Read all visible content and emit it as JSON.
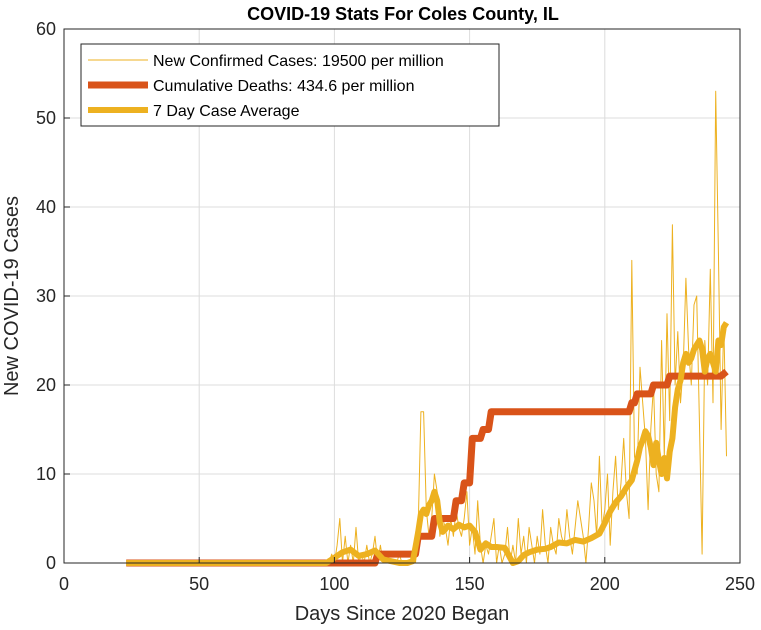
{
  "chart_data": {
    "type": "line",
    "title": "COVID-19 Stats For Coles County, IL",
    "xlabel": "Days Since 2020 Began",
    "ylabel": "New COVID-19 Cases",
    "xlim": [
      0,
      250
    ],
    "ylim": [
      0,
      60
    ],
    "xticks": [
      "0",
      "50",
      "100",
      "150",
      "200",
      "250"
    ],
    "yticks": [
      "0",
      "10",
      "20",
      "30",
      "40",
      "50",
      "60"
    ],
    "grid": true,
    "legend_position": "top-left",
    "series": [
      {
        "name": "New Confirmed Cases: 19500 per million",
        "color": "#EDB120",
        "style": "thin",
        "x": [
          23,
          30,
          40,
          50,
          60,
          70,
          80,
          90,
          95,
          98,
          99,
          100,
          101,
          102,
          103,
          104,
          105,
          106,
          107,
          108,
          109,
          110,
          111,
          112,
          113,
          114,
          115,
          116,
          117,
          118,
          119,
          120,
          121,
          122,
          123,
          124,
          125,
          126,
          127,
          128,
          129,
          130,
          131,
          132,
          133,
          134,
          135,
          136,
          137,
          138,
          139,
          140,
          141,
          142,
          143,
          144,
          145,
          146,
          147,
          148,
          149,
          150,
          151,
          152,
          153,
          154,
          155,
          156,
          157,
          158,
          159,
          160,
          161,
          162,
          163,
          164,
          165,
          166,
          167,
          168,
          169,
          170,
          171,
          172,
          173,
          174,
          175,
          176,
          177,
          178,
          179,
          180,
          181,
          182,
          183,
          184,
          185,
          186,
          187,
          188,
          189,
          190,
          191,
          192,
          193,
          194,
          195,
          196,
          197,
          198,
          199,
          200,
          201,
          202,
          203,
          204,
          205,
          206,
          207,
          208,
          209,
          210,
          211,
          212,
          213,
          214,
          215,
          216,
          217,
          218,
          219,
          220,
          221,
          222,
          223,
          224,
          225,
          226,
          227,
          228,
          229,
          230,
          231,
          232,
          233,
          234,
          235,
          236,
          237,
          238,
          239,
          240,
          241,
          242,
          243,
          244,
          245
        ],
        "y": [
          0,
          0,
          0,
          0,
          0,
          0,
          0,
          0,
          0,
          0,
          1,
          0,
          2,
          5,
          0,
          3,
          0,
          2,
          0,
          4,
          0,
          1,
          0,
          2,
          0,
          1,
          3,
          0,
          2,
          0,
          1,
          0,
          0,
          0,
          0,
          1,
          0,
          0,
          0,
          0,
          1,
          0,
          4,
          17,
          17,
          6,
          3,
          5,
          10,
          8,
          3,
          5,
          4,
          2,
          5,
          3,
          6,
          4,
          3,
          5,
          8,
          2,
          4,
          1,
          7,
          2,
          0,
          2,
          1,
          3,
          5,
          0,
          2,
          0,
          1,
          4,
          0,
          2,
          0,
          5,
          1,
          3,
          0,
          4,
          2,
          0,
          3,
          1,
          6,
          2,
          0,
          4,
          2,
          1,
          5,
          3,
          2,
          6,
          3,
          1,
          4,
          7,
          5,
          3,
          0,
          4,
          9,
          7,
          3,
          12,
          4,
          6,
          10,
          2,
          8,
          12,
          6,
          9,
          14,
          8,
          5,
          34,
          12,
          10,
          22,
          18,
          14,
          6,
          15,
          20,
          10,
          8,
          25,
          12,
          28,
          16,
          38,
          20,
          26,
          18,
          22,
          32,
          24,
          20,
          29,
          30,
          16,
          1,
          25,
          20,
          33,
          18,
          53,
          35,
          15,
          27,
          12
        ],
        "linewidth": 1
      },
      {
        "name": "Cumulative Deaths: 434.6 per million",
        "color": "#D95319",
        "style": "thick",
        "x": [
          23,
          115,
          116,
          130,
          131,
          136,
          137,
          144,
          145,
          147,
          148,
          150,
          151,
          154,
          155,
          157,
          158,
          209,
          210,
          211,
          212,
          216,
          217,
          218,
          219,
          223,
          224,
          225,
          226,
          243,
          245
        ],
        "y": [
          0,
          0,
          1,
          1,
          3,
          3,
          5,
          5,
          7,
          7,
          9,
          9,
          14,
          14,
          15,
          15,
          17,
          17,
          18,
          18,
          19,
          19,
          19,
          20,
          20,
          20,
          21,
          21,
          21,
          21,
          21.5
        ],
        "linewidth": 7
      },
      {
        "name": "7 Day Case Average",
        "color": "#EDB120",
        "style": "medium",
        "x": [
          23,
          50,
          80,
          97,
          100,
          103,
          106,
          109,
          112,
          115,
          118,
          121,
          124,
          127,
          129,
          130,
          131,
          132,
          133,
          134,
          135,
          136,
          137,
          138,
          139,
          140,
          141,
          142,
          144,
          146,
          148,
          150,
          152,
          154,
          156,
          158,
          160,
          163,
          166,
          168,
          170,
          172,
          175,
          178,
          180,
          183,
          186,
          189,
          192,
          195,
          198,
          200,
          202,
          204,
          206,
          208,
          210,
          212,
          213,
          214,
          215,
          216,
          217,
          218,
          219,
          220,
          221,
          222,
          223,
          224,
          225,
          226,
          227,
          228,
          229,
          230,
          231,
          232,
          233,
          234,
          235,
          236,
          237,
          238,
          239,
          240,
          241,
          242,
          243,
          244,
          245
        ],
        "y": [
          0,
          0,
          0,
          0,
          0.6,
          1.2,
          1.5,
          0.8,
          1.0,
          1.4,
          0.4,
          0.2,
          0,
          0,
          0.2,
          1.8,
          3.5,
          5.5,
          6.0,
          5.5,
          6.5,
          7.0,
          8.0,
          7.0,
          4.5,
          3.5,
          3.8,
          4.2,
          3.8,
          4.3,
          4.0,
          4.2,
          3.5,
          1.5,
          2.2,
          1.8,
          1.8,
          1.7,
          0,
          0.2,
          0.9,
          1.2,
          1.5,
          1.6,
          1.8,
          2.3,
          2.2,
          2.6,
          2.4,
          2.8,
          3.3,
          4.5,
          5.8,
          6.8,
          7.5,
          8.5,
          9.3,
          11.5,
          13.0,
          13.8,
          14.8,
          14.3,
          13.0,
          11.0,
          13.5,
          11.5,
          10.0,
          11.8,
          9.5,
          12.5,
          14.0,
          17.5,
          19.5,
          20.5,
          22.5,
          23.5,
          22.5,
          23.0,
          24.0,
          24.5,
          25.0,
          24.0,
          21.5,
          23.0,
          23.5,
          22.5,
          21.5,
          25.0,
          24.5,
          26.5,
          27.0
        ],
        "linewidth": 6
      }
    ]
  }
}
